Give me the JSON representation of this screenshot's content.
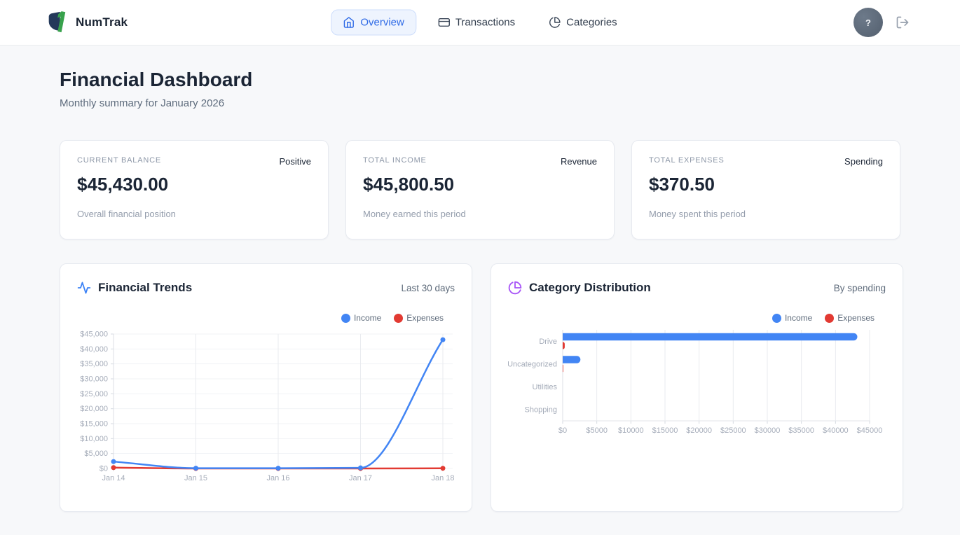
{
  "brand": {
    "name": "NumTrak"
  },
  "nav": {
    "items": [
      {
        "label": "Overview",
        "active": true
      },
      {
        "label": "Transactions",
        "active": false
      },
      {
        "label": "Categories",
        "active": false
      }
    ]
  },
  "header_actions": {
    "help_label": "?"
  },
  "page": {
    "title": "Financial Dashboard",
    "subtitle": "Monthly summary for January 2026"
  },
  "stats": [
    {
      "label": "CURRENT BALANCE",
      "tag": "Positive",
      "value": "$45,430.00",
      "description": "Overall financial position"
    },
    {
      "label": "TOTAL INCOME",
      "tag": "Revenue",
      "value": "$45,800.50",
      "description": "Money earned this period"
    },
    {
      "label": "TOTAL EXPENSES",
      "tag": "Spending",
      "value": "$370.50",
      "description": "Money spent this period"
    }
  ],
  "colors": {
    "income": "#4285f4",
    "expenses": "#e23a32",
    "accent_blue": "#3b82f6",
    "accent_purple": "#a855f7",
    "nav_active": "#2e6ae6"
  },
  "chart_data": [
    {
      "type": "line",
      "title": "Financial Trends",
      "subtitle": "Last 30 days",
      "x": [
        "Jan 14",
        "Jan 15",
        "Jan 16",
        "Jan 17",
        "Jan 18"
      ],
      "series": [
        {
          "name": "Income",
          "color": "#4285f4",
          "values": [
            2300,
            100,
            100,
            200,
            43100
          ]
        },
        {
          "name": "Expenses",
          "color": "#e23a32",
          "values": [
            300,
            0,
            0,
            0,
            70
          ]
        }
      ],
      "ylim": [
        0,
        45000
      ],
      "ytick_step": 5000,
      "yticks": [
        "$0",
        "$5,000",
        "$10,000",
        "$15,000",
        "$20,000",
        "$25,000",
        "$30,000",
        "$35,000",
        "$40,000",
        "$45,000"
      ],
      "grid": true,
      "legend_position": "top-right"
    },
    {
      "type": "bar",
      "orientation": "horizontal",
      "title": "Category Distribution",
      "subtitle": "By spending",
      "categories": [
        "Drive",
        "Uncategorized",
        "Utilities",
        "Shopping"
      ],
      "series": [
        {
          "name": "Income",
          "color": "#4285f4",
          "values": [
            43200,
            2600,
            0,
            0
          ]
        },
        {
          "name": "Expenses",
          "color": "#e23a32",
          "values": [
            300,
            70.5,
            0,
            0
          ]
        }
      ],
      "xlim": [
        0,
        45000
      ],
      "xtick_step": 5000,
      "xticks": [
        "$0",
        "$5000",
        "$10000",
        "$15000",
        "$20000",
        "$25000",
        "$30000",
        "$35000",
        "$40000",
        "$45000"
      ],
      "grid": true,
      "legend_position": "top-right"
    }
  ]
}
